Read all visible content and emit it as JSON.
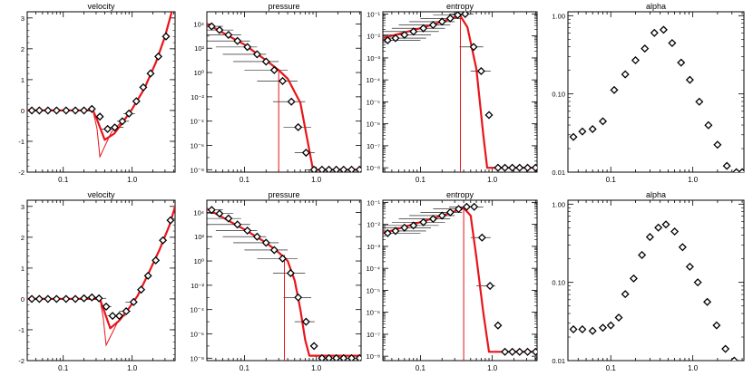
{
  "chart_data": [
    {
      "type": "scatter",
      "title": "velocity",
      "xscale": "log",
      "xlim": [
        0.03,
        4.2
      ],
      "xticks": [
        "0.1",
        "1.0"
      ],
      "ylim": [
        -2,
        3.2
      ],
      "yticks": [
        "-2",
        "-1",
        "0",
        "1",
        "2",
        "3"
      ],
      "points": [
        [
          0.035,
          0
        ],
        [
          0.045,
          0
        ],
        [
          0.06,
          0
        ],
        [
          0.08,
          0
        ],
        [
          0.11,
          0
        ],
        [
          0.15,
          0
        ],
        [
          0.2,
          0
        ],
        [
          0.26,
          0.05
        ],
        [
          0.34,
          -0.2
        ],
        [
          0.44,
          -0.6
        ],
        [
          0.56,
          -0.55
        ],
        [
          0.72,
          -0.35
        ],
        [
          0.9,
          -0.1
        ],
        [
          1.15,
          0.3
        ],
        [
          1.45,
          0.75
        ],
        [
          1.85,
          1.2
        ],
        [
          2.4,
          1.75
        ],
        [
          3.1,
          2.4
        ]
      ],
      "xerr": [
        [
          0.23,
          0.27
        ],
        [
          0.28,
          0.38
        ],
        [
          0.36,
          0.56
        ],
        [
          0.45,
          0.75
        ],
        [
          0.6,
          0.9
        ],
        [
          0.75,
          1.1
        ]
      ],
      "model_thick": [
        [
          0.03,
          0
        ],
        [
          0.27,
          0
        ],
        [
          0.31,
          -0.3
        ],
        [
          0.4,
          -0.95
        ],
        [
          0.55,
          -0.75
        ],
        [
          0.75,
          -0.35
        ],
        [
          1.0,
          0.05
        ],
        [
          1.5,
          0.7
        ],
        [
          2.2,
          1.55
        ],
        [
          3.0,
          2.4
        ],
        [
          4.2,
          3.6
        ]
      ],
      "model_thin": [
        [
          0.27,
          0
        ],
        [
          0.31,
          -0.6
        ],
        [
          0.34,
          -1.5
        ],
        [
          0.5,
          -0.7
        ],
        [
          0.75,
          -0.3
        ]
      ]
    },
    {
      "type": "scatter",
      "title": "pressure",
      "xscale": "log",
      "xlim": [
        0.03,
        4.2
      ],
      "xticks": [
        "0.1",
        "1.0"
      ],
      "yscale": "log",
      "ylim": [
        -8.2,
        5
      ],
      "yticks": [
        "10⁻⁸",
        "10⁻⁶",
        "10⁻⁴",
        "10⁻²",
        "10⁰",
        "10²",
        "10⁴"
      ],
      "points": [
        [
          0.035,
          3.8
        ],
        [
          0.045,
          3.5
        ],
        [
          0.06,
          3.1
        ],
        [
          0.08,
          2.6
        ],
        [
          0.11,
          2.1
        ],
        [
          0.15,
          1.5
        ],
        [
          0.2,
          0.9
        ],
        [
          0.26,
          0.2
        ],
        [
          0.34,
          -0.7
        ],
        [
          0.45,
          -2.4
        ],
        [
          0.56,
          -4.5
        ],
        [
          0.72,
          -6.6
        ],
        [
          0.93,
          -8.0
        ],
        [
          1.2,
          -8.0
        ],
        [
          1.5,
          -8.0
        ],
        [
          1.9,
          -8.0
        ],
        [
          2.4,
          -8.0
        ],
        [
          3.1,
          -8.0
        ],
        [
          4.0,
          -8.0
        ]
      ],
      "xerr": [
        [
          0.02,
          0.05
        ],
        [
          0.02,
          0.07
        ],
        [
          0.025,
          0.09
        ],
        [
          0.03,
          0.12
        ],
        [
          0.04,
          0.15
        ],
        [
          0.05,
          0.2
        ],
        [
          0.07,
          0.3
        ],
        [
          0.1,
          0.4
        ],
        [
          0.15,
          0.55
        ],
        [
          0.25,
          0.7
        ],
        [
          0.35,
          0.85
        ],
        [
          0.5,
          0.95
        ],
        [
          0.7,
          1.1
        ]
      ],
      "model_thick": [
        [
          0.03,
          4
        ],
        [
          0.1,
          2.3
        ],
        [
          0.2,
          1.0
        ],
        [
          0.3,
          0.2
        ],
        [
          0.4,
          -0.5
        ],
        [
          0.6,
          -2.5
        ],
        [
          0.75,
          -5.5
        ],
        [
          0.9,
          -8.0
        ],
        [
          4.2,
          -8.0
        ]
      ],
      "vline": {
        "x": 0.3,
        "from": 0.2,
        "to": -8.2
      }
    },
    {
      "type": "scatter",
      "title": "entropy",
      "xscale": "log",
      "xlim": [
        0.03,
        4.2
      ],
      "xticks": [
        "0.1",
        "1.0"
      ],
      "yscale": "log",
      "ylim": [
        -8.2,
        -0.9
      ],
      "yticks": [
        "10⁻⁸",
        "10⁻⁷",
        "10⁻⁶",
        "10⁻⁵",
        "10⁻⁴",
        "10⁻³",
        "10⁻²",
        "10⁻¹"
      ],
      "points": [
        [
          0.035,
          -2.2
        ],
        [
          0.045,
          -2.1
        ],
        [
          0.06,
          -1.95
        ],
        [
          0.08,
          -1.8
        ],
        [
          0.11,
          -1.65
        ],
        [
          0.15,
          -1.5
        ],
        [
          0.2,
          -1.35
        ],
        [
          0.26,
          -1.2
        ],
        [
          0.33,
          -1.05
        ],
        [
          0.42,
          -1.0
        ],
        [
          0.55,
          -2.5
        ],
        [
          0.7,
          -3.6
        ],
        [
          0.9,
          -5.6
        ],
        [
          1.2,
          -8.0
        ],
        [
          1.5,
          -8.0
        ],
        [
          1.9,
          -8.0
        ],
        [
          2.4,
          -8.0
        ],
        [
          3.1,
          -8.0
        ],
        [
          4.0,
          -8.0
        ]
      ],
      "xerr": [
        [
          0.02,
          0.1
        ],
        [
          0.02,
          0.12
        ],
        [
          0.025,
          0.14
        ],
        [
          0.03,
          0.18
        ],
        [
          0.04,
          0.22
        ],
        [
          0.05,
          0.26
        ],
        [
          0.07,
          0.3
        ],
        [
          0.1,
          0.38
        ],
        [
          0.15,
          0.45
        ],
        [
          0.25,
          0.55
        ],
        [
          0.35,
          0.75
        ],
        [
          0.5,
          0.95
        ]
      ],
      "model_thick": [
        [
          0.03,
          -2.1
        ],
        [
          0.1,
          -1.65
        ],
        [
          0.2,
          -1.35
        ],
        [
          0.3,
          -1.15
        ],
        [
          0.36,
          -1.1
        ],
        [
          0.45,
          -1.6
        ],
        [
          0.6,
          -3.5
        ],
        [
          0.75,
          -6.5
        ],
        [
          0.85,
          -8.0
        ],
        [
          4.2,
          -8.0
        ]
      ],
      "vline": {
        "x": 0.36,
        "from": -1.2,
        "to": -8.2
      }
    },
    {
      "type": "scatter",
      "title": "alpha",
      "xscale": "log",
      "xlim": [
        0.03,
        4.2
      ],
      "xticks": [
        "0.1",
        "1.0"
      ],
      "yscale": "log",
      "ylim": [
        -2,
        0.05
      ],
      "yticks": [
        "0.01",
        "0.10",
        "1.00"
      ],
      "points": [
        [
          0.035,
          -1.55
        ],
        [
          0.045,
          -1.48
        ],
        [
          0.06,
          -1.45
        ],
        [
          0.08,
          -1.35
        ],
        [
          0.11,
          -0.95
        ],
        [
          0.15,
          -0.75
        ],
        [
          0.2,
          -0.57
        ],
        [
          0.26,
          -0.42
        ],
        [
          0.34,
          -0.22
        ],
        [
          0.44,
          -0.18
        ],
        [
          0.56,
          -0.35
        ],
        [
          0.72,
          -0.6
        ],
        [
          0.92,
          -0.82
        ],
        [
          1.2,
          -1.1
        ],
        [
          1.55,
          -1.4
        ],
        [
          2.0,
          -1.65
        ],
        [
          2.6,
          -1.92
        ],
        [
          3.4,
          -2.0
        ],
        [
          4.0,
          -2.0
        ]
      ]
    },
    {
      "type": "scatter",
      "title": "velocity",
      "xscale": "log",
      "xlim": [
        0.03,
        4.2
      ],
      "xticks": [
        "0.1",
        "1.0"
      ],
      "ylim": [
        -2,
        3.2
      ],
      "yticks": [
        "-2",
        "-1",
        "0",
        "1",
        "2",
        "3"
      ],
      "points": [
        [
          0.035,
          0
        ],
        [
          0.045,
          0
        ],
        [
          0.06,
          0
        ],
        [
          0.08,
          0
        ],
        [
          0.11,
          0
        ],
        [
          0.15,
          0
        ],
        [
          0.2,
          0.02
        ],
        [
          0.26,
          0.05
        ],
        [
          0.33,
          0.02
        ],
        [
          0.42,
          -0.25
        ],
        [
          0.52,
          -0.55
        ],
        [
          0.65,
          -0.55
        ],
        [
          0.82,
          -0.4
        ],
        [
          1.05,
          -0.1
        ],
        [
          1.35,
          0.3
        ],
        [
          1.7,
          0.75
        ],
        [
          2.2,
          1.25
        ],
        [
          2.8,
          1.9
        ],
        [
          3.6,
          2.55
        ]
      ],
      "xerr": [
        [
          0.2,
          0.3
        ],
        [
          0.3,
          0.42
        ],
        [
          0.36,
          0.5
        ],
        [
          0.44,
          0.65
        ],
        [
          0.5,
          0.8
        ],
        [
          0.65,
          0.95
        ],
        [
          0.8,
          1.15
        ]
      ],
      "model_thick": [
        [
          0.03,
          0
        ],
        [
          0.34,
          0
        ],
        [
          0.38,
          -0.3
        ],
        [
          0.48,
          -0.95
        ],
        [
          0.65,
          -0.7
        ],
        [
          0.9,
          -0.3
        ],
        [
          1.2,
          0.1
        ],
        [
          1.7,
          0.8
        ],
        [
          2.5,
          1.6
        ],
        [
          3.5,
          2.4
        ],
        [
          4.2,
          3.0
        ]
      ],
      "model_thin": [
        [
          0.34,
          0
        ],
        [
          0.38,
          -0.6
        ],
        [
          0.42,
          -1.5
        ],
        [
          0.6,
          -0.8
        ],
        [
          0.9,
          -0.3
        ]
      ]
    },
    {
      "type": "scatter",
      "title": "pressure",
      "xscale": "log",
      "xlim": [
        0.03,
        4.2
      ],
      "xticks": [
        "0.1",
        "1.0"
      ],
      "yscale": "log",
      "ylim": [
        -8.2,
        5
      ],
      "yticks": [
        "10⁻⁸",
        "10⁻⁶",
        "10⁻⁴",
        "10⁻²",
        "10⁰",
        "10²",
        "10⁴"
      ],
      "points": [
        [
          0.035,
          4.2
        ],
        [
          0.045,
          3.9
        ],
        [
          0.06,
          3.5
        ],
        [
          0.08,
          3.0
        ],
        [
          0.11,
          2.5
        ],
        [
          0.15,
          2.0
        ],
        [
          0.2,
          1.5
        ],
        [
          0.26,
          0.9
        ],
        [
          0.34,
          0.2
        ],
        [
          0.44,
          -1.0
        ],
        [
          0.56,
          -3.0
        ],
        [
          0.72,
          -5.0
        ],
        [
          0.93,
          -7.0
        ],
        [
          1.2,
          -8.0
        ],
        [
          1.5,
          -8.0
        ],
        [
          1.9,
          -8.0
        ],
        [
          2.4,
          -8.0
        ],
        [
          3.1,
          -8.0
        ],
        [
          4.0,
          -8.0
        ]
      ],
      "xerr": [
        [
          0.02,
          0.05
        ],
        [
          0.02,
          0.07
        ],
        [
          0.025,
          0.09
        ],
        [
          0.03,
          0.12
        ],
        [
          0.04,
          0.15
        ],
        [
          0.05,
          0.2
        ],
        [
          0.07,
          0.3
        ],
        [
          0.1,
          0.4
        ],
        [
          0.15,
          0.55
        ],
        [
          0.25,
          0.7
        ],
        [
          0.35,
          0.85
        ],
        [
          0.5,
          0.95
        ]
      ],
      "model_thick": [
        [
          0.03,
          4.3
        ],
        [
          0.1,
          2.6
        ],
        [
          0.2,
          1.5
        ],
        [
          0.3,
          0.7
        ],
        [
          0.4,
          0.0
        ],
        [
          0.5,
          -1.6
        ],
        [
          0.6,
          -4.0
        ],
        [
          0.7,
          -6.5
        ],
        [
          0.8,
          -7.8
        ],
        [
          4.2,
          -7.8
        ]
      ],
      "vline": {
        "x": 0.36,
        "from": 0.5,
        "to": -8.2
      }
    },
    {
      "type": "scatter",
      "title": "entropy",
      "xscale": "log",
      "xlim": [
        0.03,
        4.2
      ],
      "xticks": [
        "0.1",
        "1.0"
      ],
      "yscale": "log",
      "ylim": [
        -8.2,
        -0.9
      ],
      "yticks": [
        "10⁻⁸",
        "10⁻⁷",
        "10⁻⁶",
        "10⁻⁵",
        "10⁻⁴",
        "10⁻³",
        "10⁻²",
        "10⁻¹"
      ],
      "points": [
        [
          0.035,
          -2.4
        ],
        [
          0.045,
          -2.3
        ],
        [
          0.06,
          -2.15
        ],
        [
          0.08,
          -2.05
        ],
        [
          0.11,
          -1.9
        ],
        [
          0.15,
          -1.75
        ],
        [
          0.2,
          -1.6
        ],
        [
          0.26,
          -1.45
        ],
        [
          0.34,
          -1.3
        ],
        [
          0.44,
          -1.2
        ],
        [
          0.56,
          -1.2
        ],
        [
          0.72,
          -2.6
        ],
        [
          0.93,
          -4.8
        ],
        [
          1.2,
          -6.6
        ],
        [
          1.5,
          -7.8
        ],
        [
          1.9,
          -7.8
        ],
        [
          2.4,
          -7.8
        ],
        [
          3.1,
          -7.8
        ],
        [
          4.0,
          -7.8
        ]
      ],
      "xerr": [
        [
          0.02,
          0.1
        ],
        [
          0.02,
          0.12
        ],
        [
          0.025,
          0.14
        ],
        [
          0.03,
          0.18
        ],
        [
          0.04,
          0.22
        ],
        [
          0.05,
          0.26
        ],
        [
          0.07,
          0.3
        ],
        [
          0.1,
          0.38
        ],
        [
          0.15,
          0.45
        ],
        [
          0.25,
          0.55
        ],
        [
          0.35,
          0.75
        ],
        [
          0.5,
          0.95
        ],
        [
          0.6,
          1.1
        ]
      ],
      "model_thick": [
        [
          0.03,
          -2.4
        ],
        [
          0.1,
          -1.9
        ],
        [
          0.2,
          -1.6
        ],
        [
          0.3,
          -1.4
        ],
        [
          0.4,
          -1.25
        ],
        [
          0.5,
          -1.6
        ],
        [
          0.6,
          -3.5
        ],
        [
          0.75,
          -6.0
        ],
        [
          0.9,
          -7.8
        ],
        [
          4.2,
          -7.8
        ]
      ],
      "vline": {
        "x": 0.4,
        "from": -1.25,
        "to": -8.2
      }
    },
    {
      "type": "scatter",
      "title": "alpha",
      "xscale": "log",
      "xlim": [
        0.03,
        4.2
      ],
      "xticks": [
        "0.1",
        "1.0"
      ],
      "yscale": "log",
      "ylim": [
        -2,
        0.05
      ],
      "yticks": [
        "0.01",
        "0.10",
        "1.00"
      ],
      "points": [
        [
          0.035,
          -1.6
        ],
        [
          0.045,
          -1.6
        ],
        [
          0.06,
          -1.62
        ],
        [
          0.08,
          -1.58
        ],
        [
          0.1,
          -1.55
        ],
        [
          0.125,
          -1.45
        ],
        [
          0.15,
          -1.15
        ],
        [
          0.19,
          -0.95
        ],
        [
          0.24,
          -0.65
        ],
        [
          0.3,
          -0.42
        ],
        [
          0.38,
          -0.3
        ],
        [
          0.47,
          -0.26
        ],
        [
          0.6,
          -0.35
        ],
        [
          0.75,
          -0.55
        ],
        [
          0.92,
          -0.8
        ],
        [
          1.15,
          -1.0
        ],
        [
          1.5,
          -1.25
        ],
        [
          1.95,
          -1.55
        ],
        [
          2.5,
          -1.85
        ],
        [
          3.2,
          -2.0
        ]
      ]
    }
  ]
}
